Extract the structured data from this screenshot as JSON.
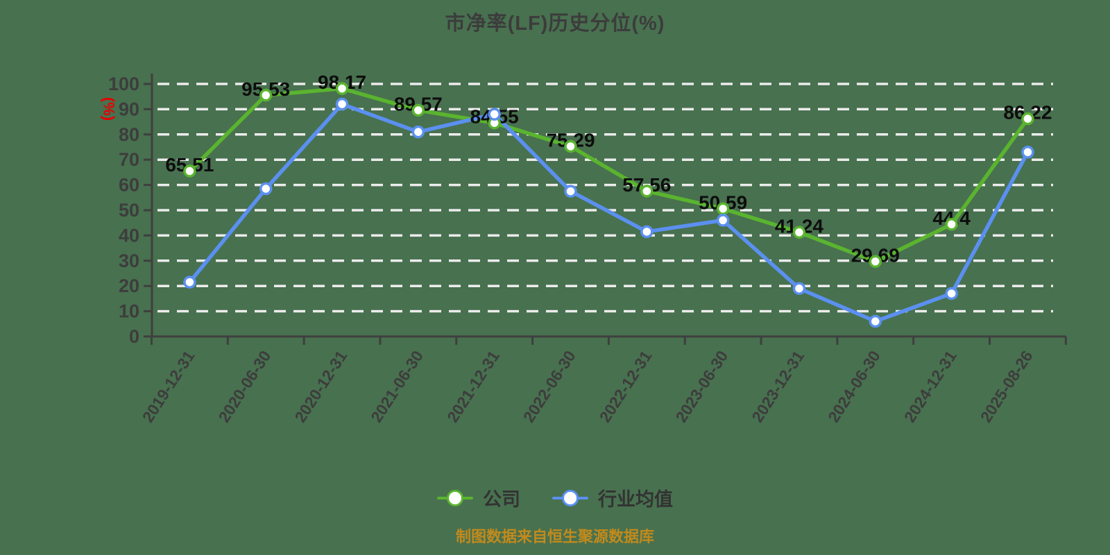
{
  "title": "市净率(LF)历史分位(%)",
  "footer": "制图数据来自恒生聚源数据库",
  "colors": {
    "background": "#48714F",
    "title_text": "#3c3c3c",
    "grid": "#ececec",
    "axis": "#3f3f3f",
    "axis_label": "#3d3d3d",
    "data_label": "#0d0d0d",
    "y_axis_name": "#e60000",
    "marker_fill": "#ffffff",
    "company_line": "#5ab42f",
    "industry_line": "#5b90f0",
    "legend_text": "#333333",
    "footer_text": "#c28a1c"
  },
  "chart_data": {
    "type": "line",
    "title": "市净率(LF)历史分位(%)",
    "xlabel": "",
    "ylabel": "(%)",
    "ylim": [
      0,
      100
    ],
    "y_ticks": [
      0,
      10,
      20,
      30,
      40,
      50,
      60,
      70,
      80,
      90,
      100
    ],
    "grid": true,
    "grid_style": "dashed",
    "legend_position": "bottom",
    "categories": [
      "2019-12-31",
      "2020-06-30",
      "2020-12-31",
      "2021-06-30",
      "2021-12-31",
      "2022-06-30",
      "2022-12-31",
      "2023-06-30",
      "2023-12-31",
      "2024-06-30",
      "2024-12-31",
      "2025-08-26"
    ],
    "series": [
      {
        "name": "公司",
        "color": "#5ab42f",
        "show_labels": true,
        "values": [
          65.51,
          95.53,
          98.17,
          89.57,
          84.55,
          75.29,
          57.56,
          50.59,
          41.24,
          29.69,
          44.4,
          86.22
        ]
      },
      {
        "name": "行业均值",
        "color": "#5b90f0",
        "show_labels": false,
        "values": [
          21.5,
          58.5,
          92,
          81,
          88,
          57.5,
          41.5,
          46,
          19,
          6,
          17,
          73
        ]
      }
    ]
  },
  "legend": {
    "items": [
      {
        "label": "公司"
      },
      {
        "label": "行业均值"
      }
    ]
  }
}
